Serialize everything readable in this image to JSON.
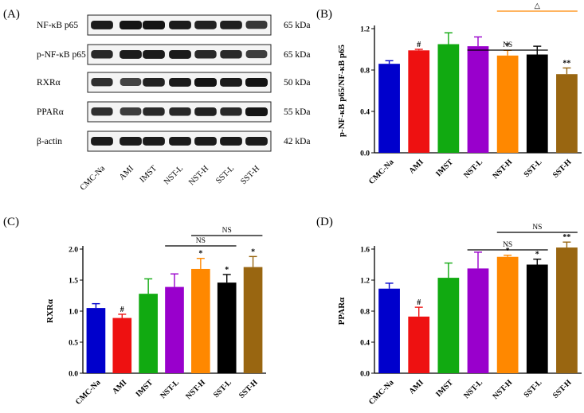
{
  "panel_labels": [
    "(A)",
    "(B)",
    "(C)",
    "(D)"
  ],
  "blot": {
    "proteins": [
      {
        "name": "NF-κB p65",
        "size": "65 kDa"
      },
      {
        "name": "p-NF-κB p65",
        "size": "65 kDa"
      },
      {
        "name": "RXRα",
        "size": "50 kDa"
      },
      {
        "name": "PPARα",
        "size": "55 kDa"
      },
      {
        "name": "β-actin",
        "size": "42 kDa"
      }
    ],
    "lanes": [
      "CMC-Na",
      "AMI",
      "IMST",
      "NST-L",
      "NST-H",
      "SST-L",
      "SST-H"
    ]
  },
  "colors": {
    "CMC-Na": "#0000cc",
    "AMI": "#ee1111",
    "IMST": "#11aa11",
    "NST-L": "#9900cc",
    "NST-H": "#ff8800",
    "SST-L": "#000000",
    "SST-H": "#996611",
    "bracket_B2": "#ff8800"
  },
  "chart_data": [
    {
      "panel": "(B)",
      "type": "bar",
      "categories": [
        "CMC-Na",
        "AMI",
        "IMST",
        "NST-L",
        "NST-H",
        "SST-L",
        "SST-H"
      ],
      "values": [
        0.86,
        0.99,
        1.05,
        1.03,
        0.94,
        0.95,
        0.76
      ],
      "errors": [
        0.03,
        0.01,
        0.11,
        0.09,
        0.05,
        0.08,
        0.06
      ],
      "significance": [
        "",
        "#",
        "",
        "",
        "*",
        "",
        "**"
      ],
      "ylabel": "p-NF-κB p65/NF-κB p65",
      "ylim": [
        0,
        1.2
      ],
      "yticks": [
        "0.0",
        "0.4",
        "0.8",
        "1.2"
      ],
      "brackets": [
        {
          "from": "NST-L",
          "to": "SST-L",
          "label": "NS"
        },
        {
          "from": "NST-H",
          "to": "SST-H",
          "label": "△"
        }
      ]
    },
    {
      "panel": "(C)",
      "type": "bar",
      "categories": [
        "CMC-Na",
        "AMI",
        "IMST",
        "NST-L",
        "NST-H",
        "SST-L",
        "SST-H"
      ],
      "values": [
        1.05,
        0.89,
        1.28,
        1.39,
        1.68,
        1.46,
        1.71
      ],
      "errors": [
        0.07,
        0.06,
        0.24,
        0.21,
        0.17,
        0.13,
        0.17
      ],
      "significance": [
        "",
        "#",
        "",
        "",
        "*",
        "*",
        "*"
      ],
      "ylabel": "RXRα",
      "ylim": [
        0,
        2.0
      ],
      "yticks": [
        "0.0",
        "0.5",
        "1.0",
        "1.5",
        "2.0"
      ],
      "brackets": [
        {
          "from": "NST-L",
          "to": "SST-L",
          "label": "NS"
        },
        {
          "from": "NST-H",
          "to": "SST-H",
          "label": "NS"
        }
      ]
    },
    {
      "panel": "(D)",
      "type": "bar",
      "categories": [
        "CMC-Na",
        "AMI",
        "IMST",
        "NST-L",
        "NST-H",
        "SST-L",
        "SST-H"
      ],
      "values": [
        1.09,
        0.73,
        1.23,
        1.35,
        1.5,
        1.4,
        1.62
      ],
      "errors": [
        0.07,
        0.12,
        0.19,
        0.21,
        0.02,
        0.07,
        0.07
      ],
      "significance": [
        "",
        "#",
        "",
        "",
        "*",
        "*",
        "**"
      ],
      "ylabel": "PPARα",
      "ylim": [
        0,
        1.6
      ],
      "yticks": [
        "0.0",
        "0.4",
        "0.8",
        "1.2",
        "1.6"
      ],
      "brackets": [
        {
          "from": "NST-L",
          "to": "SST-L",
          "label": "NS"
        },
        {
          "from": "NST-H",
          "to": "SST-H",
          "label": "NS"
        }
      ]
    }
  ]
}
